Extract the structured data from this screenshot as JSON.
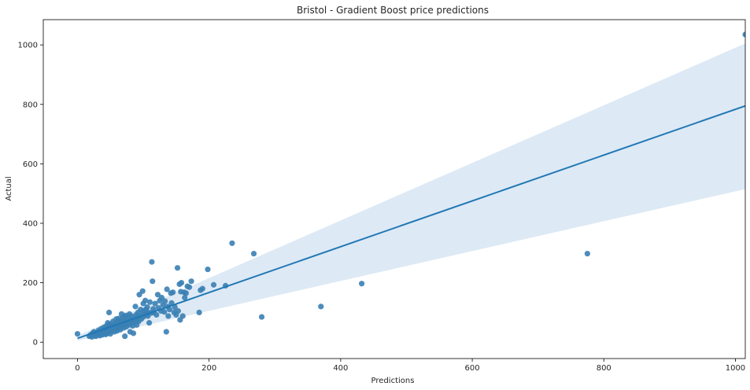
{
  "chart_data": {
    "type": "scatter",
    "title": "Bristol - Gradient Boost price predictions",
    "xlabel": "Predictions",
    "ylabel": "Actual",
    "xlim": [
      -52,
      1015
    ],
    "ylim": [
      -55,
      1085
    ],
    "xticks": [
      0,
      200,
      400,
      600,
      800,
      1000
    ],
    "yticks": [
      0,
      200,
      400,
      600,
      800,
      1000
    ],
    "grid": false,
    "colors": {
      "points": "#3a7fb4",
      "line": "#1f77b4",
      "band": "#c6dbef"
    },
    "regression": {
      "x": [
        0,
        1015
      ],
      "y": [
        13,
        795
      ],
      "ci_low": [
        5,
        515
      ],
      "ci_high": [
        22,
        1005
      ]
    },
    "points": [
      [
        0,
        28
      ],
      [
        18,
        20
      ],
      [
        20,
        25
      ],
      [
        22,
        18
      ],
      [
        23,
        30
      ],
      [
        25,
        22
      ],
      [
        25,
        35
      ],
      [
        27,
        28
      ],
      [
        28,
        20
      ],
      [
        30,
        32
      ],
      [
        30,
        25
      ],
      [
        32,
        40
      ],
      [
        33,
        28
      ],
      [
        34,
        22
      ],
      [
        35,
        35
      ],
      [
        36,
        45
      ],
      [
        37,
        30
      ],
      [
        38,
        25
      ],
      [
        39,
        38
      ],
      [
        40,
        50
      ],
      [
        40,
        28
      ],
      [
        41,
        33
      ],
      [
        42,
        42
      ],
      [
        43,
        26
      ],
      [
        44,
        55
      ],
      [
        45,
        38
      ],
      [
        45,
        30
      ],
      [
        46,
        65
      ],
      [
        47,
        48
      ],
      [
        48,
        35
      ],
      [
        48,
        100
      ],
      [
        49,
        60
      ],
      [
        50,
        45
      ],
      [
        50,
        28
      ],
      [
        52,
        55
      ],
      [
        53,
        40
      ],
      [
        54,
        70
      ],
      [
        55,
        50
      ],
      [
        56,
        35
      ],
      [
        57,
        62
      ],
      [
        58,
        45
      ],
      [
        59,
        78
      ],
      [
        60,
        55
      ],
      [
        60,
        38
      ],
      [
        61,
        68
      ],
      [
        62,
        48
      ],
      [
        63,
        80
      ],
      [
        64,
        58
      ],
      [
        65,
        42
      ],
      [
        66,
        72
      ],
      [
        67,
        95
      ],
      [
        68,
        55
      ],
      [
        69,
        65
      ],
      [
        70,
        85
      ],
      [
        70,
        48
      ],
      [
        71,
        75
      ],
      [
        72,
        20
      ],
      [
        72,
        60
      ],
      [
        73,
        90
      ],
      [
        74,
        52
      ],
      [
        75,
        70
      ],
      [
        76,
        65
      ],
      [
        77,
        85
      ],
      [
        78,
        58
      ],
      [
        79,
        95
      ],
      [
        80,
        75
      ],
      [
        80,
        35
      ],
      [
        81,
        62
      ],
      [
        82,
        88
      ],
      [
        83,
        70
      ],
      [
        84,
        55
      ],
      [
        85,
        30
      ],
      [
        86,
        80
      ],
      [
        87,
        68
      ],
      [
        88,
        120
      ],
      [
        89,
        92
      ],
      [
        90,
        75
      ],
      [
        90,
        58
      ],
      [
        91,
        85
      ],
      [
        92,
        100
      ],
      [
        93,
        70
      ],
      [
        94,
        160
      ],
      [
        95,
        88
      ],
      [
        96,
        110
      ],
      [
        97,
        78
      ],
      [
        98,
        95
      ],
      [
        99,
        172
      ],
      [
        100,
        85
      ],
      [
        100,
        130
      ],
      [
        101,
        105
      ],
      [
        102,
        92
      ],
      [
        103,
        140
      ],
      [
        104,
        110
      ],
      [
        105,
        95
      ],
      [
        106,
        118
      ],
      [
        107,
        88
      ],
      [
        108,
        100
      ],
      [
        109,
        65
      ],
      [
        110,
        135
      ],
      [
        112,
        98
      ],
      [
        113,
        270
      ],
      [
        114,
        205
      ],
      [
        115,
        112
      ],
      [
        116,
        100
      ],
      [
        118,
        130
      ],
      [
        120,
        92
      ],
      [
        122,
        160
      ],
      [
        123,
        115
      ],
      [
        125,
        140
      ],
      [
        127,
        105
      ],
      [
        128,
        150
      ],
      [
        130,
        125
      ],
      [
        132,
        102
      ],
      [
        133,
        138
      ],
      [
        135,
        35
      ],
      [
        136,
        178
      ],
      [
        137,
        120
      ],
      [
        138,
        88
      ],
      [
        140,
        110
      ],
      [
        142,
        165
      ],
      [
        143,
        132
      ],
      [
        145,
        168
      ],
      [
        147,
        100
      ],
      [
        148,
        118
      ],
      [
        150,
        92
      ],
      [
        152,
        250
      ],
      [
        153,
        105
      ],
      [
        155,
        195
      ],
      [
        156,
        75
      ],
      [
        157,
        170
      ],
      [
        158,
        200
      ],
      [
        160,
        88
      ],
      [
        162,
        168
      ],
      [
        163,
        150
      ],
      [
        165,
        165
      ],
      [
        167,
        188
      ],
      [
        170,
        185
      ],
      [
        173,
        205
      ],
      [
        185,
        100
      ],
      [
        187,
        175
      ],
      [
        190,
        180
      ],
      [
        198,
        245
      ],
      [
        207,
        193
      ],
      [
        225,
        190
      ],
      [
        235,
        333
      ],
      [
        268,
        298
      ],
      [
        280,
        85
      ],
      [
        370,
        120
      ],
      [
        432,
        197
      ],
      [
        775,
        298
      ],
      [
        1015,
        1035
      ]
    ]
  }
}
